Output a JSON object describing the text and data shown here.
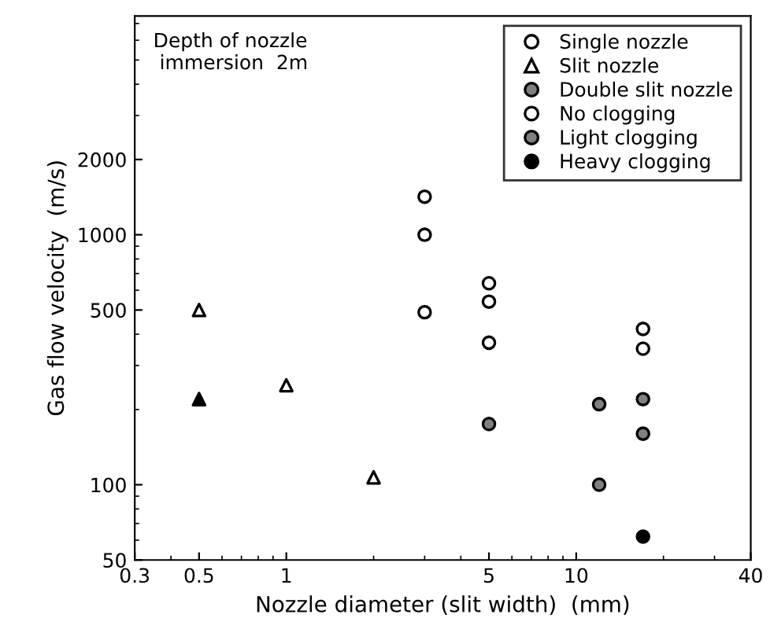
{
  "chart_data": {
    "type": "scatter",
    "xlabel": "Nozzle diameter (slit width)  (mm)",
    "ylabel": "Gas flow velocity  (m/s)",
    "annotations": [
      "Depth of nozzle\n immersion  2m"
    ],
    "log": "xy",
    "xlim": [
      0.3,
      40
    ],
    "ylim": [
      50,
      7500
    ],
    "xticks": [
      0.3,
      0.5,
      1,
      5,
      10,
      40
    ],
    "yticks": [
      50,
      100,
      500,
      1000,
      2000
    ],
    "grid": false,
    "legend": "top right",
    "series": [
      {
        "name": "Single nozzle",
        "marker": "circle",
        "color": "#000000",
        "x": [
          3,
          3,
          3,
          5,
          5,
          5,
          5,
          17,
          17,
          17,
          17,
          17
        ],
        "values": [
          1420,
          1000,
          490,
          640,
          540,
          370,
          175,
          420,
          350,
          220,
          160,
          62
        ],
        "colors": [
          "#ffffff",
          "#ffffff",
          "#ffffff",
          "#ffffff",
          "#ffffff",
          "#ffffff",
          "#808080",
          "#ffffff",
          "#ffffff",
          "#808080",
          "#808080",
          "#000000"
        ]
      },
      {
        "name": "Slit nozzle",
        "marker": "triangle",
        "color": "#000000",
        "x": [
          0.5,
          0.5,
          1,
          2
        ],
        "values": [
          500,
          220,
          250,
          107
        ],
        "colors": [
          "#ffffff",
          "#000000",
          "#ffffff",
          "#ffffff"
        ]
      },
      {
        "name": "Double slit nozzle",
        "marker": "circle",
        "color": "#000000",
        "x": [
          12,
          12
        ],
        "values": [
          210,
          100
        ],
        "colors": [
          "#808080",
          "#808080"
        ]
      },
      {
        "name": "No clogging",
        "marker": "circle",
        "color": "#ffffff"
      },
      {
        "name": "Light clogging",
        "marker": "circle",
        "color": "#808080"
      },
      {
        "name": "Heavy clogging",
        "marker": "circle",
        "color": "#000000"
      }
    ]
  }
}
